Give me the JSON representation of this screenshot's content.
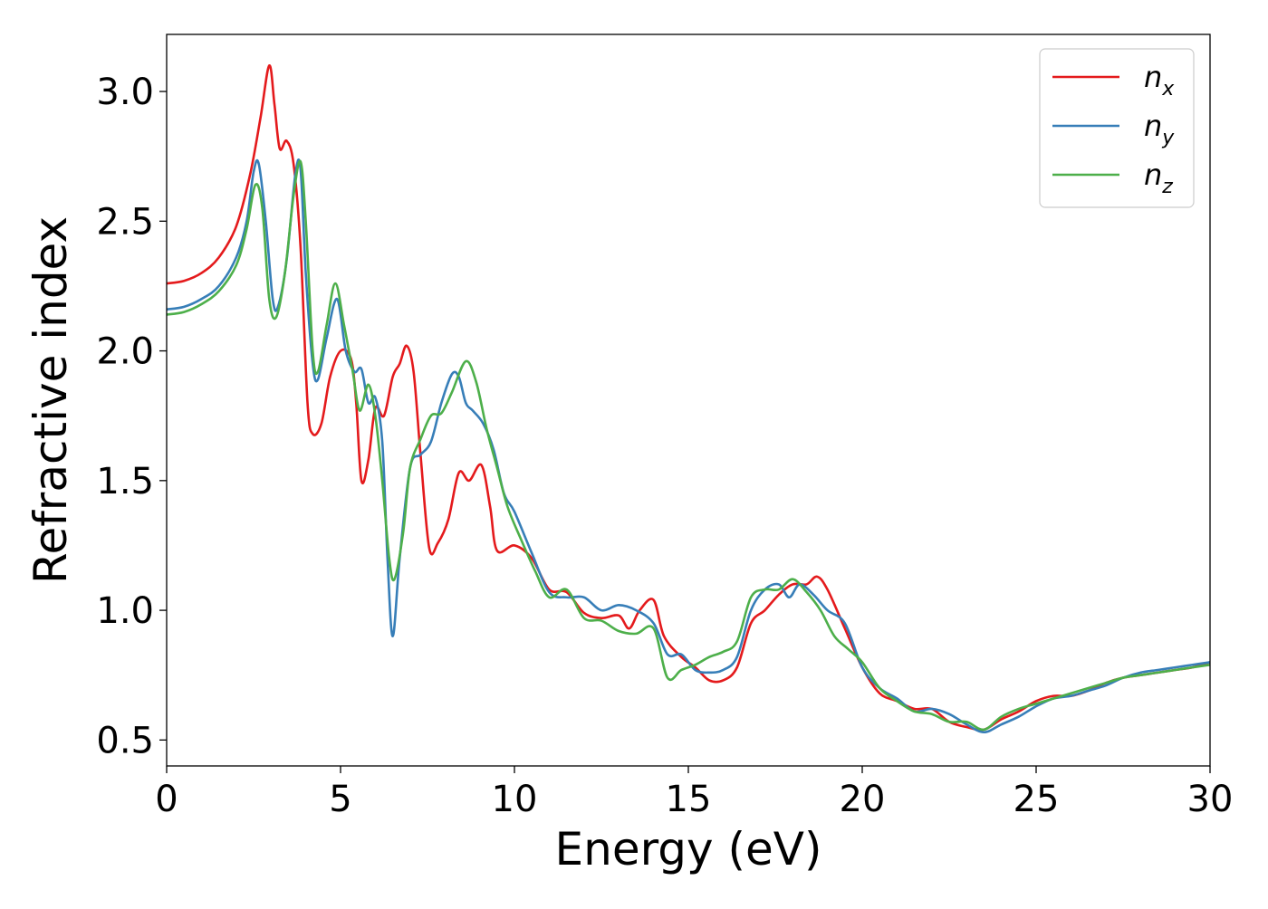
{
  "chart_data": {
    "type": "line",
    "title": "",
    "xlabel": "Energy (eV)",
    "ylabel": "Refractive index",
    "xlim": [
      0,
      30
    ],
    "ylim": [
      0.4,
      3.22
    ],
    "xticks": [
      0,
      5,
      10,
      15,
      20,
      25,
      30
    ],
    "xtick_labels": [
      "0",
      "5",
      "10",
      "15",
      "20",
      "25",
      "30"
    ],
    "yticks": [
      0.5,
      1.0,
      1.5,
      2.0,
      2.5,
      3.0
    ],
    "ytick_labels": [
      "0.5",
      "1.0",
      "1.5",
      "2.0",
      "2.5",
      "3.0"
    ],
    "grid": false,
    "legend_position": "top-right",
    "series": [
      {
        "name": "n",
        "subscript": "x",
        "color": "#e41a1c",
        "points": [
          [
            0,
            2.26
          ],
          [
            0.5,
            2.27
          ],
          [
            1,
            2.3
          ],
          [
            1.5,
            2.36
          ],
          [
            2,
            2.48
          ],
          [
            2.4,
            2.68
          ],
          [
            2.7,
            2.9
          ],
          [
            2.95,
            3.1
          ],
          [
            3.1,
            2.95
          ],
          [
            3.25,
            2.78
          ],
          [
            3.45,
            2.81
          ],
          [
            3.65,
            2.72
          ],
          [
            3.85,
            2.4
          ],
          [
            4.05,
            1.8
          ],
          [
            4.2,
            1.68
          ],
          [
            4.45,
            1.72
          ],
          [
            4.7,
            1.9
          ],
          [
            5.0,
            2.0
          ],
          [
            5.3,
            1.97
          ],
          [
            5.45,
            1.8
          ],
          [
            5.6,
            1.5
          ],
          [
            5.8,
            1.58
          ],
          [
            6.0,
            1.78
          ],
          [
            6.25,
            1.75
          ],
          [
            6.5,
            1.9
          ],
          [
            6.7,
            1.95
          ],
          [
            6.9,
            2.02
          ],
          [
            7.1,
            1.92
          ],
          [
            7.3,
            1.6
          ],
          [
            7.55,
            1.24
          ],
          [
            7.8,
            1.26
          ],
          [
            8.1,
            1.35
          ],
          [
            8.4,
            1.53
          ],
          [
            8.7,
            1.5
          ],
          [
            9.05,
            1.56
          ],
          [
            9.3,
            1.4
          ],
          [
            9.5,
            1.23
          ],
          [
            10.0,
            1.25
          ],
          [
            10.5,
            1.2
          ],
          [
            11.0,
            1.08
          ],
          [
            11.5,
            1.07
          ],
          [
            12.0,
            0.99
          ],
          [
            12.5,
            0.97
          ],
          [
            13.0,
            0.98
          ],
          [
            13.3,
            0.93
          ],
          [
            13.6,
            1.0
          ],
          [
            14.0,
            1.04
          ],
          [
            14.3,
            0.9
          ],
          [
            14.8,
            0.82
          ],
          [
            15.2,
            0.78
          ],
          [
            15.6,
            0.73
          ],
          [
            16.0,
            0.73
          ],
          [
            16.4,
            0.78
          ],
          [
            16.8,
            0.95
          ],
          [
            17.2,
            1.0
          ],
          [
            17.6,
            1.06
          ],
          [
            18.0,
            1.1
          ],
          [
            18.4,
            1.1
          ],
          [
            18.7,
            1.13
          ],
          [
            19.0,
            1.08
          ],
          [
            19.5,
            0.93
          ],
          [
            20.0,
            0.78
          ],
          [
            20.5,
            0.68
          ],
          [
            21.0,
            0.65
          ],
          [
            21.5,
            0.62
          ],
          [
            22.0,
            0.62
          ],
          [
            22.5,
            0.57
          ],
          [
            23.0,
            0.55
          ],
          [
            23.5,
            0.54
          ],
          [
            24.0,
            0.58
          ],
          [
            24.5,
            0.61
          ],
          [
            25.0,
            0.65
          ],
          [
            25.5,
            0.67
          ],
          [
            26.0,
            0.67
          ],
          [
            26.5,
            0.69
          ],
          [
            27.0,
            0.72
          ],
          [
            27.5,
            0.74
          ],
          [
            28.0,
            0.75
          ],
          [
            28.5,
            0.76
          ],
          [
            29.0,
            0.77
          ],
          [
            29.5,
            0.78
          ],
          [
            30.0,
            0.8
          ]
        ]
      },
      {
        "name": "n",
        "subscript": "y",
        "color": "#377eb8",
        "points": [
          [
            0,
            2.16
          ],
          [
            0.5,
            2.17
          ],
          [
            1,
            2.2
          ],
          [
            1.5,
            2.25
          ],
          [
            2,
            2.36
          ],
          [
            2.3,
            2.5
          ],
          [
            2.5,
            2.69
          ],
          [
            2.65,
            2.72
          ],
          [
            2.85,
            2.5
          ],
          [
            3.05,
            2.2
          ],
          [
            3.2,
            2.17
          ],
          [
            3.45,
            2.35
          ],
          [
            3.7,
            2.68
          ],
          [
            3.85,
            2.7
          ],
          [
            4.0,
            2.3
          ],
          [
            4.2,
            1.95
          ],
          [
            4.35,
            1.89
          ],
          [
            4.6,
            2.05
          ],
          [
            4.9,
            2.2
          ],
          [
            5.15,
            2.0
          ],
          [
            5.4,
            1.92
          ],
          [
            5.6,
            1.93
          ],
          [
            5.8,
            1.8
          ],
          [
            6.0,
            1.82
          ],
          [
            6.2,
            1.65
          ],
          [
            6.35,
            1.2
          ],
          [
            6.5,
            0.9
          ],
          [
            6.7,
            1.2
          ],
          [
            7.0,
            1.55
          ],
          [
            7.3,
            1.6
          ],
          [
            7.6,
            1.65
          ],
          [
            7.9,
            1.8
          ],
          [
            8.2,
            1.91
          ],
          [
            8.4,
            1.9
          ],
          [
            8.6,
            1.8
          ],
          [
            8.8,
            1.77
          ],
          [
            9.1,
            1.72
          ],
          [
            9.4,
            1.62
          ],
          [
            9.7,
            1.45
          ],
          [
            10.0,
            1.38
          ],
          [
            10.5,
            1.22
          ],
          [
            11.0,
            1.07
          ],
          [
            11.5,
            1.05
          ],
          [
            12.0,
            1.05
          ],
          [
            12.5,
            1.0
          ],
          [
            13.0,
            1.02
          ],
          [
            13.5,
            1.0
          ],
          [
            14.0,
            0.95
          ],
          [
            14.4,
            0.83
          ],
          [
            14.8,
            0.83
          ],
          [
            15.2,
            0.77
          ],
          [
            15.6,
            0.76
          ],
          [
            16.0,
            0.77
          ],
          [
            16.4,
            0.82
          ],
          [
            16.8,
            1.0
          ],
          [
            17.2,
            1.08
          ],
          [
            17.6,
            1.1
          ],
          [
            17.9,
            1.05
          ],
          [
            18.2,
            1.1
          ],
          [
            18.6,
            1.06
          ],
          [
            19.0,
            1.0
          ],
          [
            19.5,
            0.95
          ],
          [
            20.0,
            0.78
          ],
          [
            20.5,
            0.7
          ],
          [
            21.0,
            0.66
          ],
          [
            21.5,
            0.61
          ],
          [
            22.0,
            0.62
          ],
          [
            22.5,
            0.6
          ],
          [
            23.0,
            0.56
          ],
          [
            23.5,
            0.53
          ],
          [
            24.0,
            0.56
          ],
          [
            24.5,
            0.59
          ],
          [
            25.0,
            0.63
          ],
          [
            25.5,
            0.66
          ],
          [
            26.0,
            0.67
          ],
          [
            26.5,
            0.69
          ],
          [
            27.0,
            0.71
          ],
          [
            27.5,
            0.74
          ],
          [
            28.0,
            0.76
          ],
          [
            28.5,
            0.77
          ],
          [
            29.0,
            0.78
          ],
          [
            29.5,
            0.79
          ],
          [
            30.0,
            0.8
          ]
        ]
      },
      {
        "name": "n",
        "subscript": "z",
        "color": "#4daf4a",
        "points": [
          [
            0,
            2.14
          ],
          [
            0.5,
            2.15
          ],
          [
            1,
            2.18
          ],
          [
            1.5,
            2.23
          ],
          [
            2,
            2.33
          ],
          [
            2.3,
            2.47
          ],
          [
            2.55,
            2.64
          ],
          [
            2.75,
            2.55
          ],
          [
            2.95,
            2.2
          ],
          [
            3.15,
            2.13
          ],
          [
            3.4,
            2.3
          ],
          [
            3.65,
            2.6
          ],
          [
            3.85,
            2.73
          ],
          [
            4.0,
            2.5
          ],
          [
            4.2,
            2.0
          ],
          [
            4.35,
            1.92
          ],
          [
            4.6,
            2.1
          ],
          [
            4.85,
            2.26
          ],
          [
            5.1,
            2.1
          ],
          [
            5.35,
            1.92
          ],
          [
            5.55,
            1.77
          ],
          [
            5.8,
            1.87
          ],
          [
            6.0,
            1.75
          ],
          [
            6.2,
            1.5
          ],
          [
            6.4,
            1.2
          ],
          [
            6.55,
            1.12
          ],
          [
            6.8,
            1.3
          ],
          [
            7.0,
            1.55
          ],
          [
            7.3,
            1.66
          ],
          [
            7.6,
            1.75
          ],
          [
            7.9,
            1.76
          ],
          [
            8.2,
            1.84
          ],
          [
            8.6,
            1.96
          ],
          [
            8.9,
            1.88
          ],
          [
            9.2,
            1.7
          ],
          [
            9.5,
            1.55
          ],
          [
            9.8,
            1.4
          ],
          [
            10.2,
            1.27
          ],
          [
            10.6,
            1.15
          ],
          [
            11.0,
            1.05
          ],
          [
            11.5,
            1.08
          ],
          [
            12.0,
            0.97
          ],
          [
            12.5,
            0.96
          ],
          [
            13.0,
            0.92
          ],
          [
            13.5,
            0.91
          ],
          [
            14.0,
            0.93
          ],
          [
            14.4,
            0.74
          ],
          [
            14.8,
            0.77
          ],
          [
            15.2,
            0.79
          ],
          [
            15.6,
            0.82
          ],
          [
            16.0,
            0.84
          ],
          [
            16.4,
            0.88
          ],
          [
            16.8,
            1.05
          ],
          [
            17.2,
            1.08
          ],
          [
            17.6,
            1.08
          ],
          [
            18.0,
            1.12
          ],
          [
            18.4,
            1.07
          ],
          [
            18.8,
            1.0
          ],
          [
            19.2,
            0.9
          ],
          [
            19.6,
            0.85
          ],
          [
            20.0,
            0.8
          ],
          [
            20.5,
            0.7
          ],
          [
            21.0,
            0.65
          ],
          [
            21.5,
            0.61
          ],
          [
            22.0,
            0.6
          ],
          [
            22.5,
            0.57
          ],
          [
            23.0,
            0.57
          ],
          [
            23.5,
            0.54
          ],
          [
            24.0,
            0.59
          ],
          [
            24.5,
            0.62
          ],
          [
            25.0,
            0.64
          ],
          [
            25.5,
            0.66
          ],
          [
            26.0,
            0.68
          ],
          [
            26.5,
            0.7
          ],
          [
            27.0,
            0.72
          ],
          [
            27.5,
            0.74
          ],
          [
            28.0,
            0.75
          ],
          [
            28.5,
            0.76
          ],
          [
            29.0,
            0.77
          ],
          [
            29.5,
            0.78
          ],
          [
            30.0,
            0.79
          ]
        ]
      }
    ]
  }
}
